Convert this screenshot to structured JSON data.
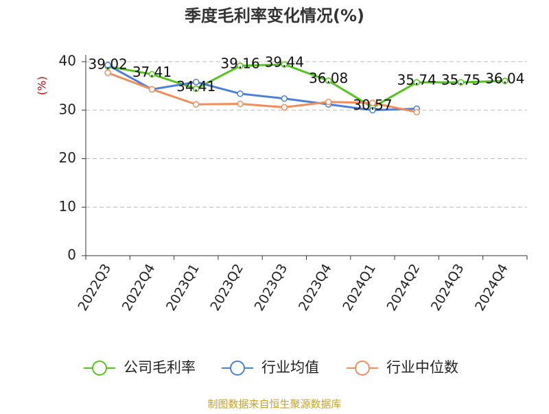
{
  "chart_data": {
    "type": "line",
    "title": "季度毛利率变化情况(%)",
    "y_label": "(%)",
    "categories": [
      "2022Q3",
      "2022Q4",
      "2023Q1",
      "2023Q2",
      "2023Q3",
      "2023Q4",
      "2024Q1",
      "2024Q2",
      "2024Q3",
      "2024Q4"
    ],
    "series": [
      {
        "name": "公司毛利率",
        "color": "#52c41a",
        "labels": true,
        "values": [
          39.02,
          37.41,
          34.41,
          39.16,
          39.44,
          36.08,
          30.57,
          35.74,
          35.75,
          36.04
        ]
      },
      {
        "name": "行业均值",
        "color": "#4a7fdc",
        "labels": false,
        "values": [
          39.3,
          34.3,
          35.8,
          33.4,
          32.4,
          31.2,
          30.0,
          30.3,
          null,
          null
        ]
      },
      {
        "name": "行业中位数",
        "color": "#f28c5a",
        "labels": false,
        "values": [
          37.7,
          34.3,
          31.2,
          31.3,
          30.6,
          31.7,
          31.5,
          29.6,
          null,
          null
        ]
      }
    ],
    "ylim": [
      0,
      40
    ],
    "yticks": [
      0,
      10,
      20,
      30,
      40
    ],
    "grid": true,
    "source": "制图数据来自恒生聚源数据库"
  }
}
